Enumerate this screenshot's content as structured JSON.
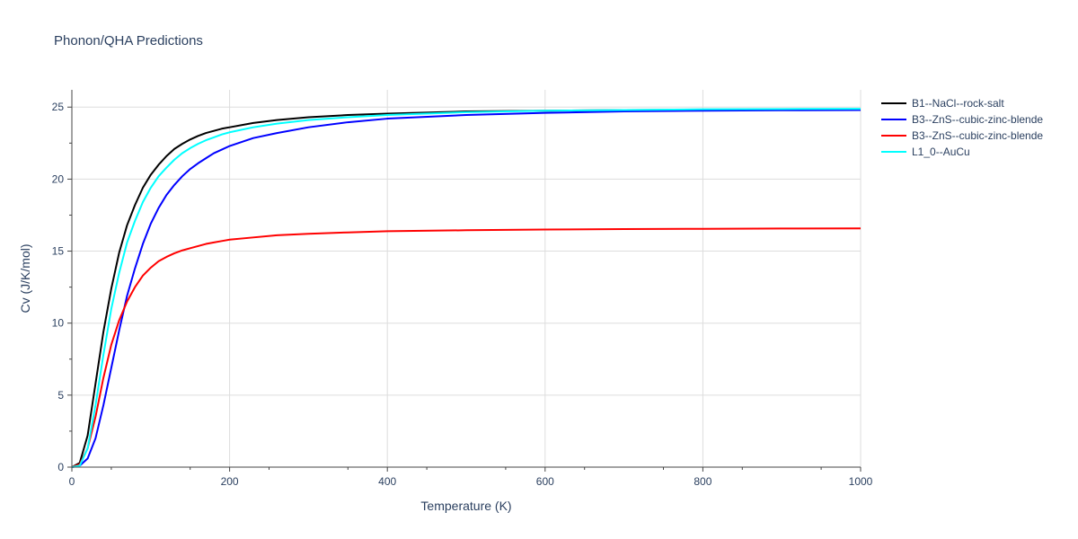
{
  "chart_data": {
    "type": "line",
    "title": "Phonon/QHA Predictions",
    "xlabel": "Temperature (K)",
    "ylabel": "Cv (J/K/mol)",
    "xlim": [
      0,
      1000
    ],
    "ylim": [
      0,
      26.2
    ],
    "x_ticks": [
      0,
      200,
      400,
      600,
      800,
      1000
    ],
    "y_ticks": [
      0,
      5,
      10,
      15,
      20,
      25
    ],
    "grid": true,
    "legend_position": "right",
    "series": [
      {
        "name": "B1--NaCl--rock-salt",
        "color": "#000000",
        "x": [
          0,
          10,
          20,
          30,
          40,
          50,
          60,
          70,
          80,
          90,
          100,
          110,
          120,
          130,
          140,
          150,
          160,
          170,
          180,
          190,
          200,
          230,
          260,
          300,
          350,
          400,
          500,
          600,
          700,
          800,
          900,
          1000
        ],
        "y": [
          0,
          0.3,
          2.2,
          5.8,
          9.4,
          12.4,
          14.9,
          16.8,
          18.2,
          19.4,
          20.3,
          21.0,
          21.6,
          22.1,
          22.45,
          22.75,
          23.0,
          23.2,
          23.35,
          23.5,
          23.6,
          23.9,
          24.1,
          24.3,
          24.45,
          24.55,
          24.7,
          24.75,
          24.8,
          24.82,
          24.84,
          24.85
        ]
      },
      {
        "name": "B3--ZnS--cubic-zinc-blende",
        "color": "#0000ff",
        "x": [
          0,
          10,
          20,
          30,
          40,
          50,
          60,
          70,
          80,
          90,
          100,
          110,
          120,
          130,
          140,
          150,
          160,
          170,
          180,
          190,
          200,
          230,
          260,
          300,
          350,
          400,
          500,
          600,
          700,
          800,
          900,
          1000
        ],
        "y": [
          0,
          0.1,
          0.6,
          2.0,
          4.3,
          6.9,
          9.5,
          11.9,
          13.8,
          15.5,
          16.9,
          18.0,
          18.9,
          19.6,
          20.2,
          20.7,
          21.1,
          21.45,
          21.8,
          22.05,
          22.3,
          22.85,
          23.2,
          23.6,
          23.95,
          24.2,
          24.45,
          24.6,
          24.7,
          24.75,
          24.78,
          24.8
        ]
      },
      {
        "name": "B3--ZnS--cubic-zinc-blende",
        "color": "#ff0000",
        "x": [
          0,
          10,
          20,
          30,
          40,
          50,
          60,
          70,
          80,
          90,
          100,
          110,
          120,
          130,
          140,
          150,
          160,
          170,
          180,
          190,
          200,
          230,
          260,
          300,
          350,
          400,
          500,
          600,
          700,
          800,
          900,
          1000
        ],
        "y": [
          0,
          0.2,
          1.3,
          3.5,
          6.2,
          8.5,
          10.2,
          11.5,
          12.5,
          13.3,
          13.85,
          14.3,
          14.6,
          14.85,
          15.05,
          15.2,
          15.35,
          15.5,
          15.6,
          15.7,
          15.8,
          15.95,
          16.1,
          16.2,
          16.3,
          16.38,
          16.45,
          16.5,
          16.53,
          16.55,
          16.57,
          16.58
        ]
      },
      {
        "name": "L1_0--AuCu",
        "color": "#00ffff",
        "x": [
          0,
          10,
          20,
          30,
          40,
          50,
          60,
          70,
          80,
          90,
          100,
          110,
          120,
          130,
          140,
          150,
          160,
          170,
          180,
          190,
          200,
          230,
          260,
          300,
          350,
          400,
          500,
          600,
          700,
          800,
          900,
          1000
        ],
        "y": [
          0,
          0.1,
          1.3,
          4.3,
          7.8,
          11.0,
          13.5,
          15.6,
          17.1,
          18.4,
          19.4,
          20.2,
          20.8,
          21.35,
          21.8,
          22.15,
          22.45,
          22.7,
          22.9,
          23.1,
          23.25,
          23.6,
          23.85,
          24.1,
          24.3,
          24.45,
          24.65,
          24.75,
          24.8,
          24.85,
          24.87,
          24.88
        ]
      }
    ]
  }
}
